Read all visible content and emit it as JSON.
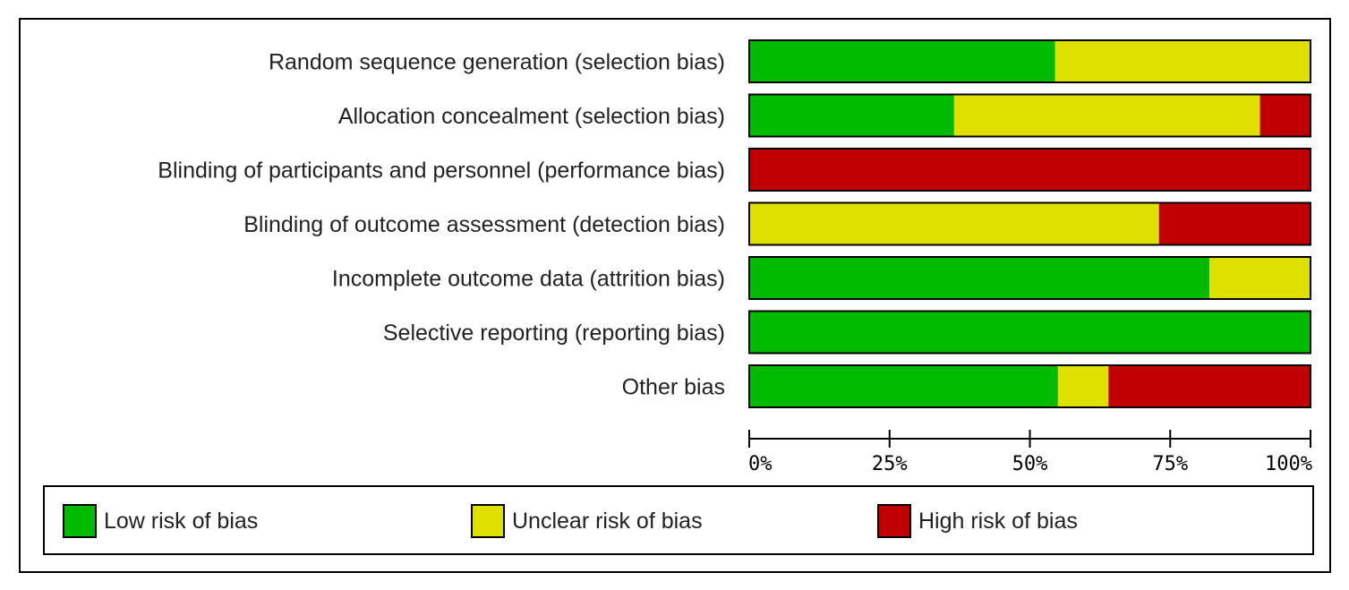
{
  "chart_data": {
    "type": "bar",
    "orientation": "horizontal",
    "stacked": true,
    "categories": [
      "Random sequence generation (selection bias)",
      "Allocation concealment (selection bias)",
      "Blinding of participants and personnel (performance bias)",
      "Blinding of outcome assessment (detection bias)",
      "Incomplete outcome data (attrition bias)",
      "Selective reporting (reporting bias)",
      "Other bias"
    ],
    "series": [
      {
        "name": "Low risk of bias",
        "color": "#00bb00",
        "values": [
          54.5,
          36.5,
          0,
          0,
          82,
          100,
          55
        ]
      },
      {
        "name": "Unclear risk of bias",
        "color": "#e0e000",
        "values": [
          45.5,
          54.5,
          0,
          73,
          18,
          0,
          9
        ]
      },
      {
        "name": "High risk of bias",
        "color": "#c00000",
        "values": [
          0,
          9,
          100,
          27,
          0,
          0,
          36
        ]
      }
    ],
    "x_ticks": [
      "0%",
      "25%",
      "50%",
      "75%",
      "100%"
    ],
    "xlim": [
      0,
      100
    ],
    "legend_position": "bottom",
    "grid": false
  }
}
